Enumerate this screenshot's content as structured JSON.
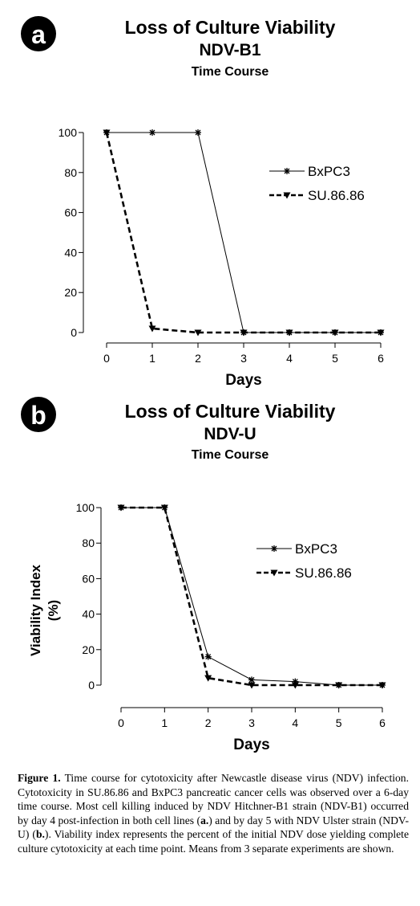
{
  "chart_data": [
    {
      "type": "line",
      "panel": "a",
      "title": "Loss of Culture Viability",
      "subtitle": "NDV-B1",
      "subtitle2": "Time Course",
      "xlabel": "Days",
      "ylabel": "",
      "x": [
        0,
        1,
        2,
        3,
        4,
        5,
        6
      ],
      "xlim": [
        0,
        6
      ],
      "ylim": [
        0,
        100
      ],
      "yticks": [
        0,
        20,
        40,
        60,
        80,
        100
      ],
      "grid": false,
      "legend_position": "top-right",
      "series": [
        {
          "name": "BxPC3",
          "style": "solid",
          "values": [
            100,
            100,
            100,
            0,
            0,
            0,
            0
          ]
        },
        {
          "name": "SU.86.86",
          "style": "dashed",
          "values": [
            100,
            2,
            0,
            0,
            0,
            0,
            0
          ]
        }
      ]
    },
    {
      "type": "line",
      "panel": "b",
      "title": "Loss of Culture Viability",
      "subtitle": "NDV-U",
      "subtitle2": "Time Course",
      "xlabel": "Days",
      "ylabel": "Viability Index",
      "ylabel2": "(%)",
      "x": [
        0,
        1,
        2,
        3,
        4,
        5,
        6
      ],
      "xlim": [
        0,
        6
      ],
      "ylim": [
        0,
        100
      ],
      "yticks": [
        0,
        20,
        40,
        60,
        80,
        100
      ],
      "grid": false,
      "legend_position": "top-right",
      "series": [
        {
          "name": "BxPC3",
          "style": "solid",
          "values": [
            100,
            100,
            16,
            3,
            2,
            0,
            0
          ]
        },
        {
          "name": "SU.86.86",
          "style": "dashed",
          "values": [
            100,
            100,
            4,
            0,
            0,
            0,
            0
          ]
        }
      ]
    }
  ],
  "caption": {
    "label": "Figure 1.",
    "text": " Time course for cytotoxicity after Newcastle disease virus (NDV) infection. Cytotoxicity in SU.86.86 and BxPC3 pancreatic cancer cells was observed over a 6-day time course. Most cell killing induced by NDV Hitchner-B1 strain (NDV-B1) occurred by day 4 post-infection in both cell lines (",
    "ref_a": "a.",
    "text2": ") and by day 5 with NDV Ulster strain (NDV-U) (",
    "ref_b": "b.",
    "text3": "). Viability index represents the percent of the initial NDV dose yielding complete culture cytotoxicity at each time point. Means from 3 separate experiments are shown."
  },
  "colors": {
    "ink": "#000000",
    "background": "#ffffff"
  }
}
